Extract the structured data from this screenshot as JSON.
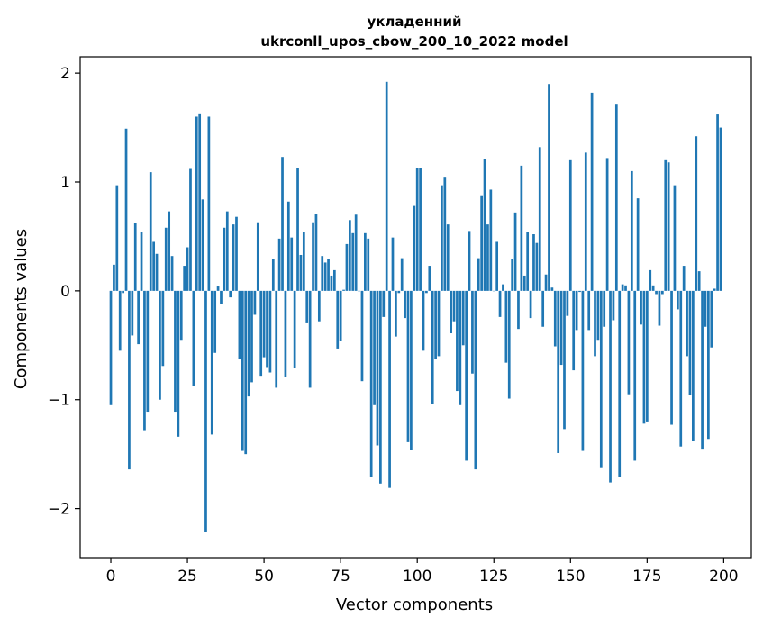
{
  "chart_data": {
    "type": "bar",
    "title_line1": "укладенний",
    "title_line2": "ukrconll_upos_cbow_200_10_2022 model",
    "xlabel": "Vector components",
    "ylabel": "Components values",
    "xlim": [
      -10,
      209
    ],
    "ylim": [
      -2.45,
      2.15
    ],
    "xticks": [
      0,
      25,
      50,
      75,
      100,
      125,
      150,
      175,
      200
    ],
    "yticks": [
      2,
      1,
      0,
      -1,
      -2
    ],
    "xtick_labels": [
      "0",
      "25",
      "50",
      "75",
      "100",
      "125",
      "150",
      "175",
      "200"
    ],
    "ytick_labels": [
      "2",
      "1",
      "0",
      "−1",
      "−2"
    ],
    "bar_color": "#1f77b4",
    "grid": false,
    "values": [
      -1.05,
      0.24,
      0.97,
      -0.55,
      -0.02,
      1.49,
      -1.64,
      -0.41,
      0.62,
      -0.49,
      0.54,
      -1.28,
      -1.11,
      1.09,
      0.45,
      0.34,
      -1.0,
      -0.69,
      0.58,
      0.73,
      0.32,
      -1.11,
      -1.34,
      -0.45,
      0.23,
      0.4,
      1.12,
      -0.87,
      1.6,
      1.63,
      0.84,
      -2.21,
      1.6,
      -1.32,
      -0.57,
      0.04,
      -0.12,
      0.58,
      0.73,
      -0.06,
      0.61,
      0.68,
      -0.63,
      -1.47,
      -1.5,
      -0.97,
      -0.84,
      -0.22,
      0.63,
      -0.78,
      -0.61,
      -0.7,
      -0.75,
      0.29,
      -0.89,
      0.48,
      1.23,
      -0.79,
      0.82,
      0.49,
      -0.71,
      1.13,
      0.33,
      0.54,
      -0.29,
      -0.89,
      0.63,
      0.71,
      -0.28,
      0.32,
      0.26,
      0.29,
      0.14,
      0.19,
      -0.53,
      -0.46,
      0.01,
      0.43,
      0.65,
      0.53,
      0.7,
      0.0,
      -0.83,
      0.53,
      0.48,
      -1.71,
      -1.05,
      -1.42,
      -1.77,
      -0.24,
      1.92,
      -1.81,
      0.49,
      -0.42,
      -0.02,
      0.3,
      -0.25,
      -1.39,
      -1.46,
      0.78,
      1.13,
      1.13,
      -0.55,
      -0.02,
      0.23,
      -1.04,
      -0.63,
      -0.6,
      0.97,
      1.04,
      0.61,
      -0.39,
      -0.28,
      -0.92,
      -1.05,
      -0.5,
      -1.56,
      0.55,
      -0.76,
      -1.64,
      0.3,
      0.87,
      1.21,
      0.61,
      0.93,
      0.0,
      0.45,
      -0.24,
      0.06,
      -0.66,
      -0.99,
      0.29,
      0.72,
      -0.35,
      1.15,
      0.14,
      0.54,
      -0.25,
      0.52,
      0.44,
      1.32,
      -0.33,
      0.15,
      1.9,
      0.03,
      -0.51,
      -1.49,
      -0.68,
      -1.27,
      -0.23,
      1.2,
      -0.73,
      -0.36,
      -0.01,
      -1.47,
      1.27,
      -0.36,
      1.82,
      -0.6,
      -0.45,
      -1.62,
      -0.33,
      1.22,
      -1.76,
      -0.27,
      1.71,
      -1.71,
      0.06,
      0.05,
      -0.95,
      1.1,
      -1.56,
      0.85,
      -0.31,
      -1.22,
      -1.2,
      0.19,
      0.05,
      -0.03,
      -0.32,
      -0.03,
      1.2,
      1.18,
      -1.23,
      0.97,
      -0.17,
      -1.43,
      0.23,
      -0.6,
      -0.96,
      -1.38,
      1.42,
      0.18,
      -1.45,
      -0.33,
      -1.36,
      -0.52,
      0.02,
      1.62,
      1.5
    ]
  }
}
